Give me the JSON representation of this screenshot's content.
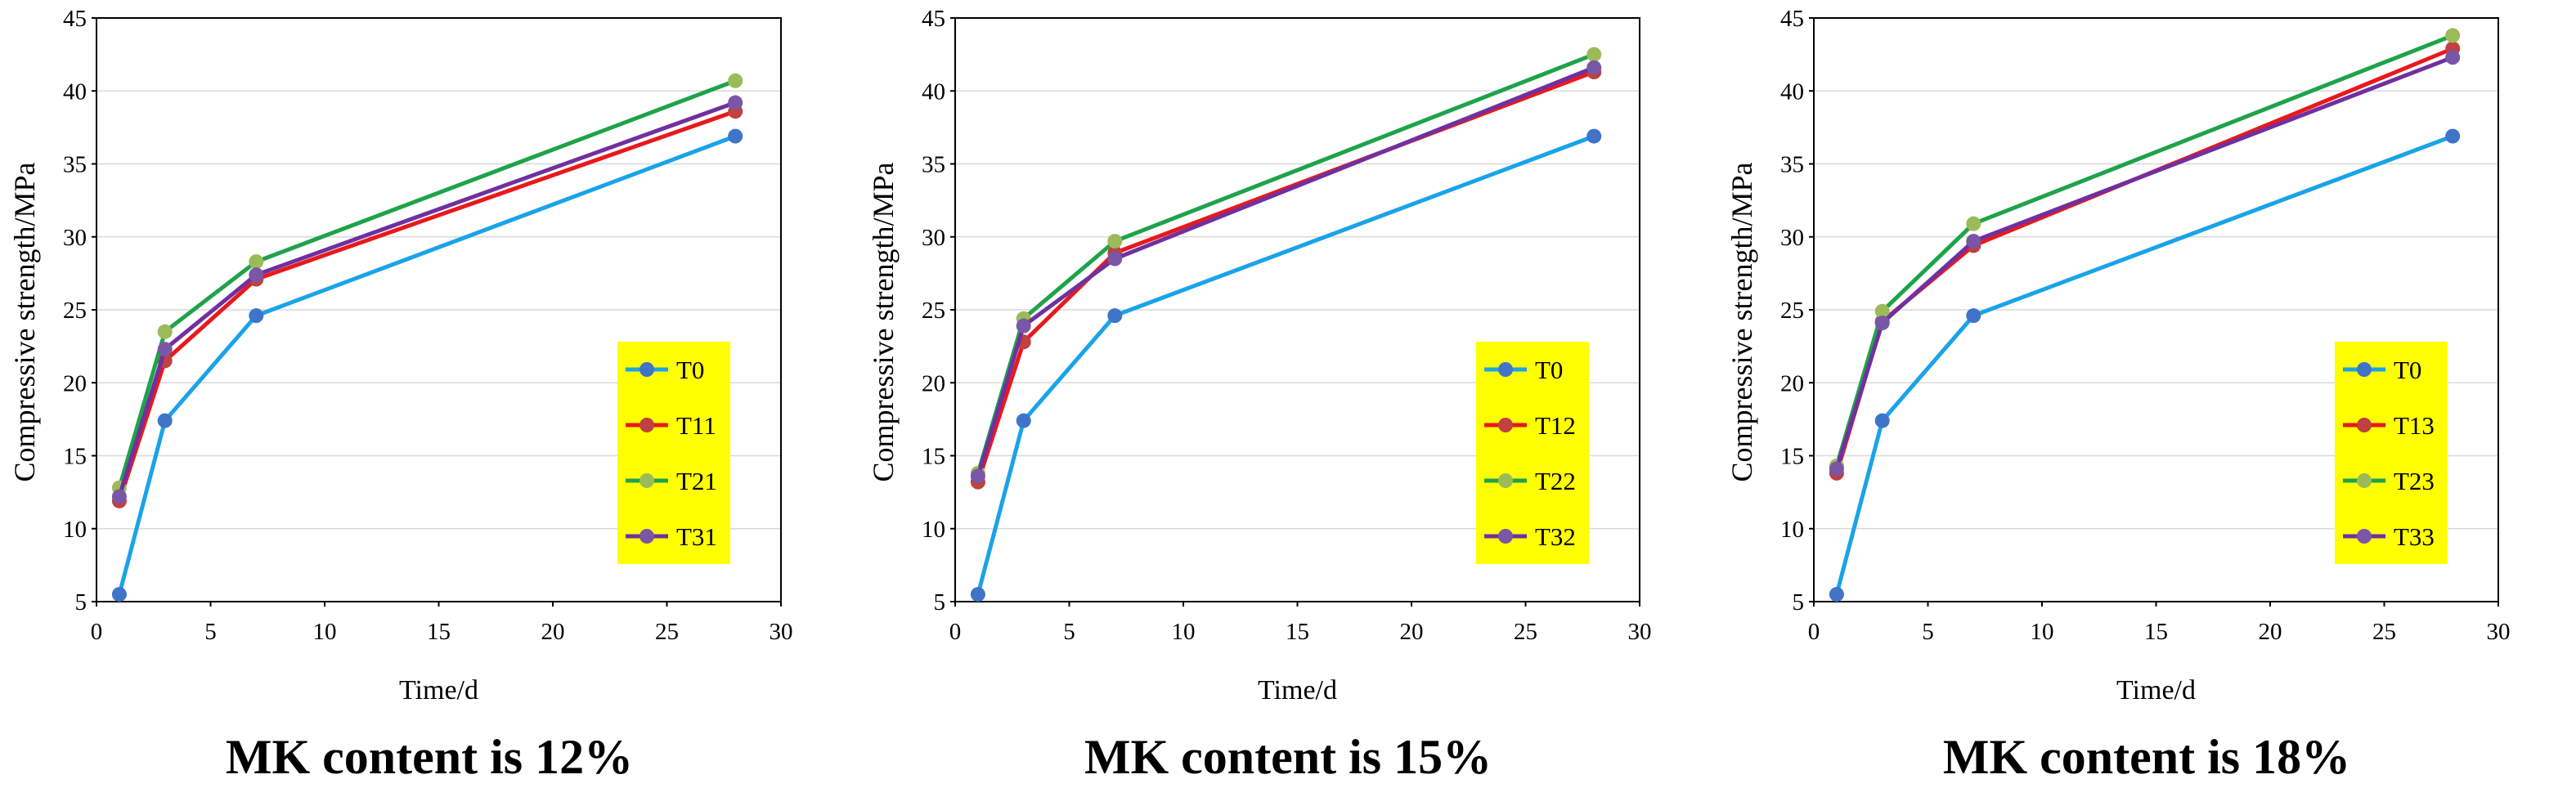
{
  "chart_data": [
    {
      "type": "line",
      "title": "",
      "caption": "MK content is 12%",
      "xlabel": "Time/d",
      "ylabel": "Compressive strength/MPa",
      "xlim": [
        0,
        30
      ],
      "ylim": [
        5,
        45
      ],
      "xticks": [
        0,
        5,
        10,
        15,
        20,
        25,
        30
      ],
      "yticks": [
        5,
        10,
        15,
        20,
        25,
        30,
        35,
        40,
        45
      ],
      "grid": "horizontal",
      "legend_position": "right",
      "legend_background": "#ffff00",
      "x": [
        1,
        3,
        7,
        28
      ],
      "series": [
        {
          "name": "T0",
          "line_color": "#1aa3e8",
          "marker_color": "#3f74c9",
          "values": [
            5.5,
            17.4,
            24.6,
            36.9
          ]
        },
        {
          "name": "T11",
          "line_color": "#e8191c",
          "marker_color": "#c0413e",
          "values": [
            11.9,
            21.5,
            27.1,
            38.6
          ]
        },
        {
          "name": "T21",
          "line_color": "#1ea34a",
          "marker_color": "#9bbb59",
          "values": [
            12.8,
            23.5,
            28.3,
            40.7
          ]
        },
        {
          "name": "T31",
          "line_color": "#7030a0",
          "marker_color": "#7a56a6",
          "values": [
            12.2,
            22.3,
            27.4,
            39.2
          ]
        }
      ]
    },
    {
      "type": "line",
      "title": "",
      "caption": "MK content is 15%",
      "xlabel": "Time/d",
      "ylabel": "Compressive strength/MPa",
      "xlim": [
        0,
        30
      ],
      "ylim": [
        5,
        45
      ],
      "xticks": [
        0,
        5,
        10,
        15,
        20,
        25,
        30
      ],
      "yticks": [
        5,
        10,
        15,
        20,
        25,
        30,
        35,
        40,
        45
      ],
      "grid": "horizontal",
      "legend_position": "right",
      "legend_background": "#ffff00",
      "x": [
        1,
        3,
        7,
        28
      ],
      "series": [
        {
          "name": "T0",
          "line_color": "#1aa3e8",
          "marker_color": "#3f74c9",
          "values": [
            5.5,
            17.4,
            24.6,
            36.9
          ]
        },
        {
          "name": "T12",
          "line_color": "#e8191c",
          "marker_color": "#c0413e",
          "values": [
            13.2,
            22.8,
            28.9,
            41.3
          ]
        },
        {
          "name": "T22",
          "line_color": "#1ea34a",
          "marker_color": "#9bbb59",
          "values": [
            13.8,
            24.4,
            29.7,
            42.5
          ]
        },
        {
          "name": "T32",
          "line_color": "#7030a0",
          "marker_color": "#7a56a6",
          "values": [
            13.6,
            23.9,
            28.5,
            41.6
          ]
        }
      ]
    },
    {
      "type": "line",
      "title": "",
      "caption": "MK content is 18%",
      "xlabel": "Time/d",
      "ylabel": "Compressive strength/MPa",
      "xlim": [
        0,
        30
      ],
      "ylim": [
        5,
        45
      ],
      "xticks": [
        0,
        5,
        10,
        15,
        20,
        25,
        30
      ],
      "yticks": [
        5,
        10,
        15,
        20,
        25,
        30,
        35,
        40,
        45
      ],
      "grid": "horizontal",
      "legend_position": "right",
      "legend_background": "#ffff00",
      "x": [
        1,
        3,
        7,
        28
      ],
      "series": [
        {
          "name": "T0",
          "line_color": "#1aa3e8",
          "marker_color": "#3f74c9",
          "values": [
            5.5,
            17.4,
            24.6,
            36.9
          ]
        },
        {
          "name": "T13",
          "line_color": "#e8191c",
          "marker_color": "#c0413e",
          "values": [
            13.8,
            24.2,
            29.4,
            42.9
          ]
        },
        {
          "name": "T23",
          "line_color": "#1ea34a",
          "marker_color": "#9bbb59",
          "values": [
            14.3,
            24.9,
            30.9,
            43.8
          ]
        },
        {
          "name": "T33",
          "line_color": "#7030a0",
          "marker_color": "#7a56a6",
          "values": [
            14.1,
            24.1,
            29.7,
            42.3
          ]
        }
      ]
    }
  ]
}
